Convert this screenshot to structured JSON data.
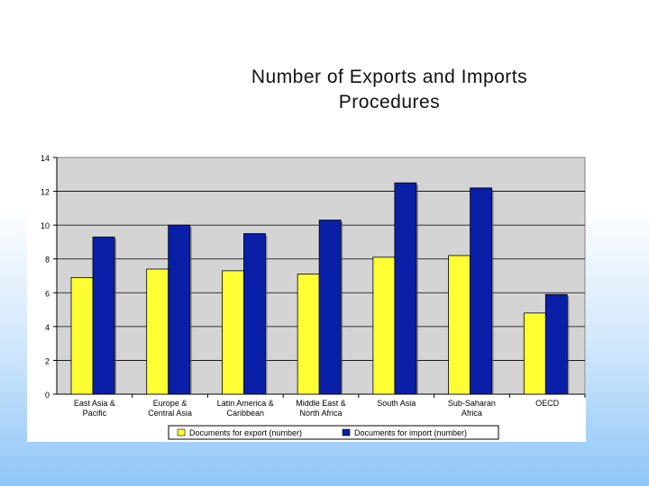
{
  "slide": {
    "title_line1": "Number of Exports and Imports",
    "title_line2": "Procedures"
  },
  "chart_data": {
    "type": "bar",
    "title": "",
    "xlabel": "",
    "ylabel": "",
    "ylim": [
      0,
      14
    ],
    "yticks": [
      0,
      2,
      4,
      6,
      8,
      10,
      12,
      14
    ],
    "grid": true,
    "legend_position": "bottom",
    "categories": [
      [
        "East Asia &",
        "Pacific"
      ],
      [
        "Europe &",
        "Central Asia"
      ],
      [
        "Latin America &",
        "Caribbean"
      ],
      [
        "Middle East &",
        "North Africa"
      ],
      [
        "South Asia"
      ],
      [
        "Sub-Saharan",
        "Africa"
      ],
      [
        "OECD"
      ]
    ],
    "series": [
      {
        "name": "Documents for export (number)",
        "color": "#ffff33",
        "values": [
          6.9,
          7.4,
          7.3,
          7.1,
          8.1,
          8.2,
          4.8
        ]
      },
      {
        "name": "Documents for import (number)",
        "color": "#0a1fa8",
        "values": [
          9.3,
          10.0,
          9.5,
          10.3,
          12.5,
          12.2,
          5.9
        ]
      }
    ],
    "colors": {
      "plot_background": "#d4d4d4"
    }
  }
}
